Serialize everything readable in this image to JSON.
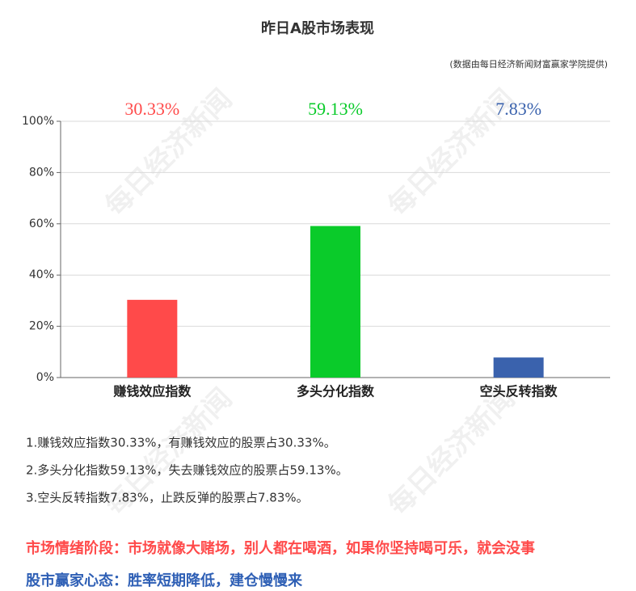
{
  "chart_data": {
    "type": "bar",
    "title": "昨日A股市场表现",
    "subtitle": "(数据由每日经济新闻财富赢家学院提供)",
    "watermark": "每日经济新闻",
    "categories": [
      "赚钱效应指数",
      "多头分化指数",
      "空头反转指数"
    ],
    "values": [
      30.33,
      59.13,
      7.83
    ],
    "value_labels": [
      "30.33%",
      "59.13%",
      "7.83%"
    ],
    "colors": [
      "#ff4a4a",
      "#0acb2a",
      "#3a62ad"
    ],
    "ylim": [
      0,
      100
    ],
    "yticks": [
      {
        "value": 0,
        "label": "0%"
      },
      {
        "value": 20,
        "label": "20%"
      },
      {
        "value": 40,
        "label": "40%"
      },
      {
        "value": 60,
        "label": "60%"
      },
      {
        "value": 80,
        "label": "80%"
      },
      {
        "value": 100,
        "label": "100%"
      }
    ],
    "grid": true
  },
  "notes": [
    "1.赚钱效应指数30.33%，有赚钱效应的股票占30.33%。",
    "2.多头分化指数59.13%，失去赚钱效应的股票占59.13%。",
    "3.空头反转指数7.83%，止跌反弹的股票占7.83%。"
  ],
  "sentiment": "市场情绪阶段：市场就像大赌场，别人都在喝酒，如果你坚持喝可乐，就会没事",
  "mindset": "股市赢家心态：胜率短期降低，建仓慢慢来"
}
